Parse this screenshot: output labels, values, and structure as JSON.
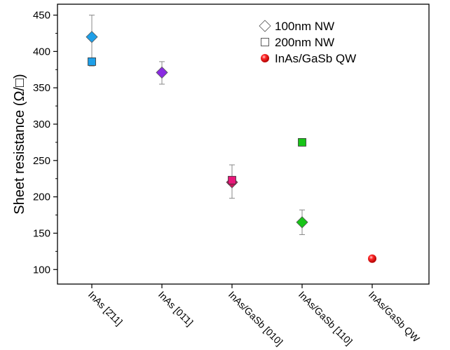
{
  "chart_data": {
    "type": "scatter",
    "title": "",
    "xlabel": "",
    "ylabel": "Sheet resistance (Ω/□)",
    "ylim": [
      80,
      465
    ],
    "yticks": [
      100,
      150,
      200,
      250,
      300,
      350,
      400,
      450
    ],
    "categories": [
      "InAs [2̄11]",
      "InAs [01̄1]",
      "InAs/GaSb [010]",
      "InAs/GaSb [110]",
      "InAs/GaSb QW"
    ],
    "grid": false,
    "legend_position": "top-right",
    "series": [
      {
        "name": "100nm NW",
        "marker": "diamond",
        "points": [
          {
            "category": "InAs [2̄11]",
            "y": 420,
            "err_low": 380,
            "err_high": 450,
            "color": "#1e9fe8"
          },
          {
            "category": "InAs [01̄1]",
            "y": 371,
            "err_low": 355,
            "err_high": 386,
            "color": "#8a2be2"
          },
          {
            "category": "InAs/GaSb [010]",
            "y": 220,
            "err_low": 198,
            "err_high": 244,
            "color": "#c2185b"
          },
          {
            "category": "InAs/GaSb [110]",
            "y": 165,
            "err_low": 148,
            "err_high": 182,
            "color": "#18c418"
          }
        ]
      },
      {
        "name": "200nm NW",
        "marker": "square",
        "points": [
          {
            "category": "InAs [2̄11]",
            "y": 386,
            "color": "#1e9fe8"
          },
          {
            "category": "InAs/GaSb [010]",
            "y": 223,
            "color": "#e8177a"
          },
          {
            "category": "InAs/GaSb [110]",
            "y": 275,
            "err_low": 270,
            "err_high": 280,
            "color": "#18c418"
          }
        ]
      },
      {
        "name": "InAs/GaSb QW",
        "marker": "sphere",
        "points": [
          {
            "category": "InAs/GaSb QW",
            "y": 115,
            "color": "#e8141a"
          }
        ]
      }
    ]
  }
}
